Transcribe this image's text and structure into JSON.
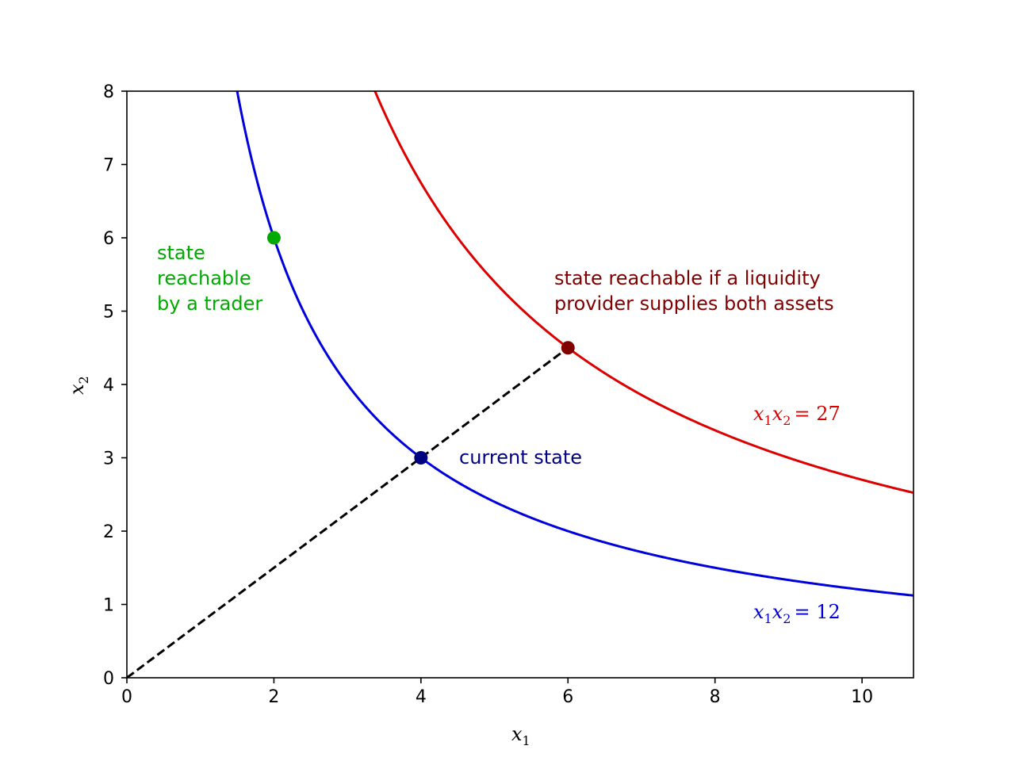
{
  "chart_data": {
    "type": "line",
    "xlabel": "x1",
    "ylabel": "x2",
    "xlim": [
      0,
      10.7
    ],
    "ylim": [
      0,
      8
    ],
    "xticks": [
      "0",
      "2",
      "4",
      "6",
      "8",
      "10"
    ],
    "yticks": [
      "0",
      "1",
      "2",
      "3",
      "4",
      "5",
      "6",
      "7",
      "8"
    ],
    "grid": false,
    "series": [
      {
        "name": "x1x2 = 12",
        "k": 12,
        "color": "#0000dd",
        "style": "solid"
      },
      {
        "name": "x1x2 = 27",
        "k": 27,
        "color": "#dd0000",
        "style": "solid"
      },
      {
        "name": "",
        "x": [
          0,
          6
        ],
        "y": [
          0,
          4.5
        ],
        "color": "#000000",
        "style": "dashed"
      }
    ],
    "points": [
      {
        "x": 2,
        "y": 6,
        "color": "#00aa00"
      },
      {
        "x": 4,
        "y": 3,
        "color": "#000080"
      },
      {
        "x": 6,
        "y": 4.5,
        "color": "#800000"
      }
    ],
    "annotations": [
      {
        "lines": [
          "state",
          "reachable",
          "by a trader"
        ],
        "color": "#00aa00"
      },
      {
        "lines": [
          "state reachable if a liquidity",
          "provider supplies both assets"
        ],
        "color": "#800000"
      },
      {
        "lines": [
          "current state"
        ],
        "color": "#000080"
      }
    ],
    "equations": [
      {
        "var1": "x",
        "sub1": "1",
        "var2": "x",
        "sub2": "2",
        "rhs": "= 12",
        "color": "#0000dd"
      },
      {
        "var1": "x",
        "sub1": "1",
        "var2": "x",
        "sub2": "2",
        "rhs": "= 27",
        "color": "#dd0000"
      }
    ]
  }
}
